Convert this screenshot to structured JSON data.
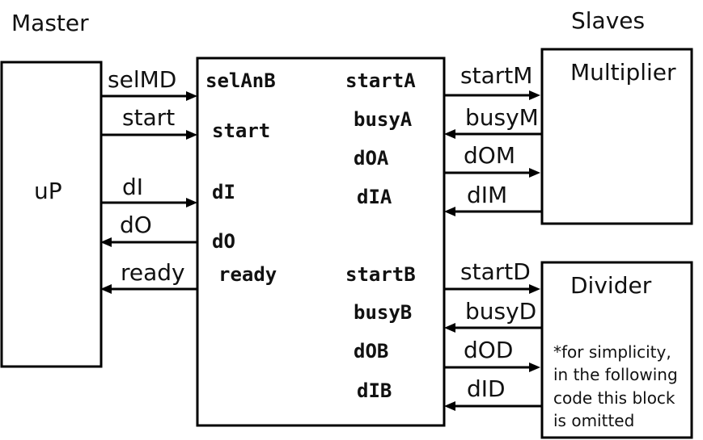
{
  "headings": {
    "master": "Master",
    "slaves": "Slaves"
  },
  "blocks": {
    "up": "uP",
    "multiplier": "Multiplier",
    "divider": "Divider",
    "note": [
      "*for simplicity,",
      "in the following",
      "code this block",
      "is omitted"
    ]
  },
  "left_signals": [
    "selMD",
    "start",
    "dI",
    "dO",
    "ready"
  ],
  "arbiter_ports": {
    "left": [
      "selAnB",
      "start",
      "dI",
      "dO",
      "ready"
    ],
    "right_a": [
      "startA",
      "busyA",
      "dOA",
      "dIA"
    ],
    "right_b": [
      "startB",
      "busyB",
      "dOB",
      "dIB"
    ]
  },
  "multiplier_signals": [
    "startM",
    "busyM",
    "dOM",
    "dIM"
  ],
  "divider_signals": [
    "startD",
    "busyD",
    "dOD",
    "dID"
  ]
}
